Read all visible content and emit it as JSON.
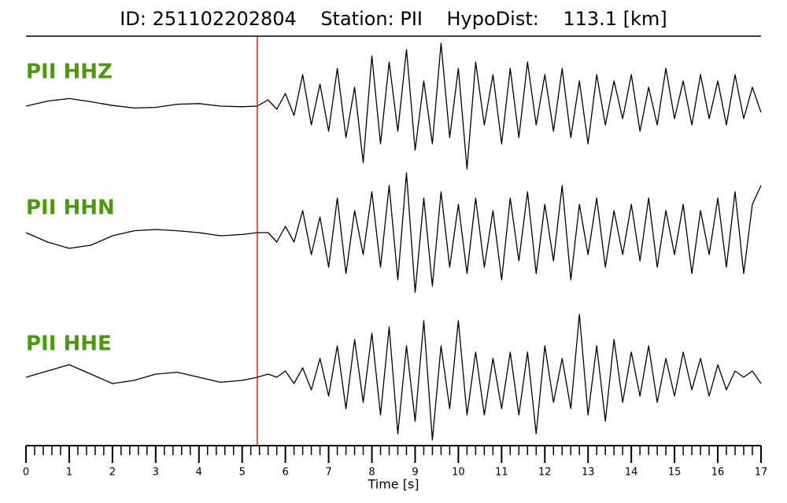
{
  "chart_data": {
    "type": "line",
    "title": "ID: 251102202804    Station: PII    HypoDist:    113.1 [km]",
    "x_label": "Time [s]",
    "xlim": [
      0,
      17
    ],
    "xticks": [
      0,
      1,
      2,
      3,
      4,
      5,
      6,
      7,
      8,
      9,
      10,
      11,
      12,
      13,
      14,
      15,
      16,
      17
    ],
    "xminor_step": 0.2,
    "ylim": [
      -1,
      1
    ],
    "pick_time": 5.35,
    "pick_color": "#e00000",
    "label_color": "#4c9a0a",
    "x": [
      0,
      0.5,
      1,
      1.5,
      2,
      2.5,
      3,
      3.5,
      4,
      4.5,
      5,
      5.35,
      5.6,
      5.8,
      6,
      6.2,
      6.4,
      6.6,
      6.8,
      7,
      7.2,
      7.4,
      7.6,
      7.8,
      8,
      8.2,
      8.4,
      8.6,
      8.8,
      9,
      9.2,
      9.4,
      9.6,
      9.8,
      10,
      10.2,
      10.4,
      10.6,
      10.8,
      11,
      11.2,
      11.4,
      11.6,
      11.8,
      12,
      12.2,
      12.4,
      12.6,
      12.8,
      13,
      13.2,
      13.4,
      13.6,
      13.8,
      14,
      14.2,
      14.4,
      14.6,
      14.8,
      15,
      15.2,
      15.4,
      15.6,
      15.8,
      16,
      16.2,
      16.4,
      16.6,
      16.8,
      17
    ],
    "series": [
      {
        "name": "PII HHZ",
        "color": "#000000",
        "values": [
          0.0,
          0.08,
          0.12,
          0.07,
          0.01,
          -0.03,
          -0.02,
          0.03,
          0.04,
          0.0,
          -0.01,
          0.0,
          0.1,
          -0.05,
          0.2,
          -0.15,
          0.5,
          -0.3,
          0.35,
          -0.4,
          0.6,
          -0.5,
          0.3,
          -0.9,
          0.8,
          -0.6,
          0.7,
          -0.4,
          0.9,
          -0.7,
          0.4,
          -0.6,
          1.0,
          -0.5,
          0.6,
          -1.0,
          0.7,
          -0.3,
          0.5,
          -0.6,
          0.6,
          -0.5,
          0.7,
          -0.3,
          0.5,
          -0.4,
          0.6,
          -0.5,
          0.4,
          -0.6,
          0.5,
          -0.3,
          0.4,
          -0.2,
          0.5,
          -0.4,
          0.3,
          -0.3,
          0.6,
          -0.2,
          0.4,
          -0.3,
          0.5,
          -0.2,
          0.4,
          -0.3,
          0.5,
          -0.2,
          0.3,
          -0.1
        ]
      },
      {
        "name": "PII HHN",
        "color": "#000000",
        "values": [
          0.05,
          -0.1,
          -0.2,
          -0.15,
          0.0,
          0.08,
          0.1,
          0.08,
          0.05,
          0.0,
          0.02,
          0.05,
          0.05,
          -0.1,
          0.15,
          -0.1,
          0.4,
          -0.3,
          0.3,
          -0.5,
          0.6,
          -0.6,
          0.4,
          -0.3,
          0.7,
          -0.5,
          0.8,
          -0.7,
          1.0,
          -0.9,
          0.6,
          -0.8,
          0.7,
          -0.5,
          0.5,
          -0.6,
          0.6,
          -0.5,
          0.4,
          -0.7,
          0.6,
          -0.4,
          0.7,
          -0.6,
          0.5,
          -0.4,
          0.8,
          -0.7,
          0.5,
          -0.3,
          0.6,
          -0.5,
          0.4,
          -0.3,
          0.5,
          -0.4,
          0.6,
          -0.5,
          0.4,
          -0.3,
          0.5,
          -0.6,
          0.4,
          -0.3,
          0.6,
          -0.5,
          0.7,
          -0.6,
          0.5,
          0.8
        ]
      },
      {
        "name": "PII HHE",
        "color": "#000000",
        "values": [
          0.0,
          0.1,
          0.2,
          0.05,
          -0.1,
          -0.05,
          0.05,
          0.08,
          0.0,
          -0.08,
          -0.05,
          0.0,
          0.05,
          0.0,
          0.1,
          -0.1,
          0.15,
          -0.2,
          0.3,
          -0.3,
          0.5,
          -0.5,
          0.6,
          -0.4,
          0.7,
          -0.6,
          0.8,
          -0.9,
          0.5,
          -0.7,
          0.9,
          -1.0,
          0.5,
          -0.5,
          0.9,
          -0.6,
          0.4,
          -0.6,
          0.3,
          -0.5,
          0.4,
          -0.6,
          0.4,
          -0.9,
          0.5,
          -0.4,
          0.3,
          -0.5,
          1.0,
          -0.6,
          0.5,
          -0.7,
          0.6,
          -0.4,
          0.4,
          -0.3,
          0.5,
          -0.4,
          0.3,
          -0.3,
          0.4,
          -0.2,
          0.3,
          -0.3,
          0.2,
          -0.2,
          0.1,
          0.0,
          0.1,
          -0.1
        ]
      }
    ]
  }
}
